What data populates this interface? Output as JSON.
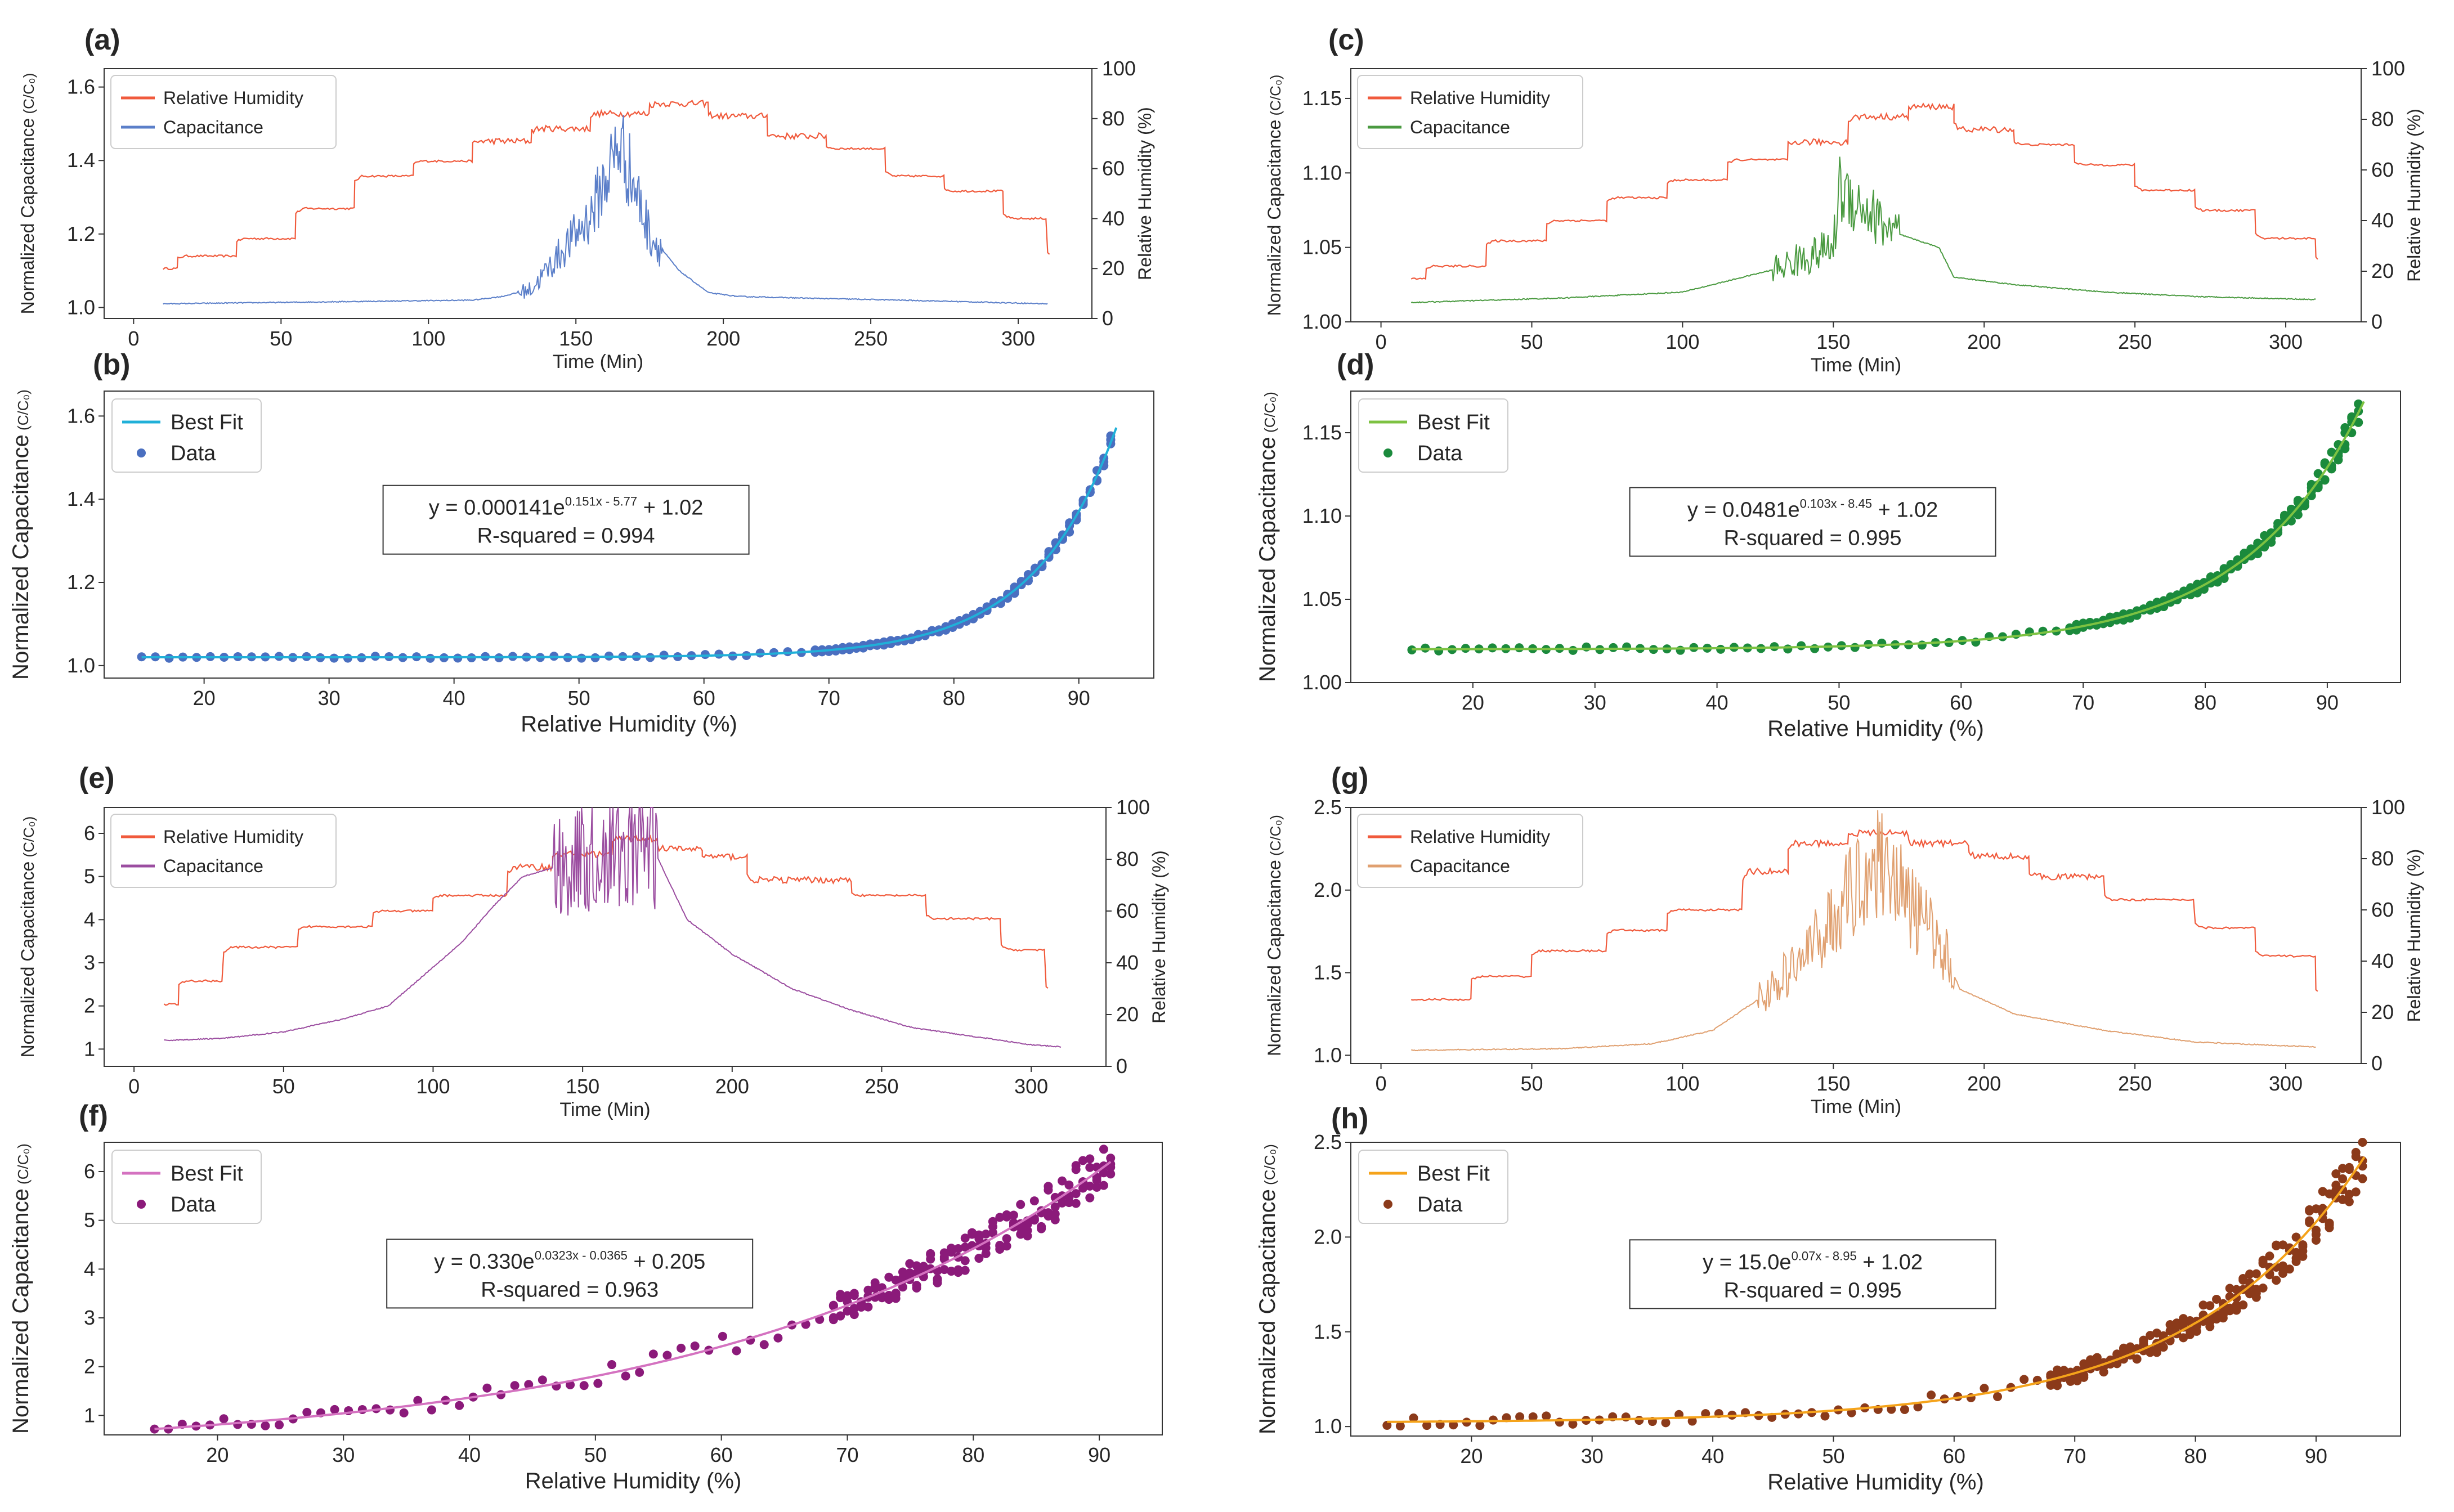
{
  "chart_data": [
    {
      "panel": "(a)",
      "type": "line",
      "xlabel": "Time (Min)",
      "ylabel": "Normalized Capacitance",
      "ylabel_frac": "C/C₀",
      "y2label": "Relative Humidity (%)",
      "xlim": [
        -10,
        325
      ],
      "ylim": [
        0.97,
        1.65
      ],
      "y2lim": [
        0,
        100
      ],
      "xticks": [
        0,
        50,
        100,
        150,
        200,
        250,
        300
      ],
      "yticks": [
        1.0,
        1.2,
        1.4,
        1.6
      ],
      "y2ticks": [
        0,
        20,
        40,
        60,
        80,
        100
      ],
      "rh_color": "#f05a3c",
      "cap_color": "#5b7fc9",
      "legend": [
        "Relative Humidity",
        "Capacitance"
      ],
      "rh_steps": [
        [
          10,
          20
        ],
        [
          15,
          25
        ],
        [
          35,
          32
        ],
        [
          55,
          44
        ],
        [
          75,
          57
        ],
        [
          95,
          63
        ],
        [
          115,
          71
        ],
        [
          135,
          76
        ],
        [
          155,
          82
        ],
        [
          175,
          86
        ],
        [
          195,
          81
        ],
        [
          215,
          73
        ],
        [
          235,
          68
        ],
        [
          255,
          57
        ],
        [
          275,
          51
        ],
        [
          295,
          40
        ],
        [
          310,
          24
        ]
      ],
      "cap_levels": [
        [
          10,
          1.01
        ],
        [
          115,
          1.02
        ],
        [
          125,
          1.03
        ],
        [
          135,
          1.05
        ],
        [
          140,
          1.1
        ],
        [
          155,
          1.25
        ],
        [
          165,
          1.45
        ],
        [
          175,
          1.2
        ],
        [
          185,
          1.1
        ],
        [
          195,
          1.04
        ],
        [
          205,
          1.03
        ],
        [
          230,
          1.025
        ],
        [
          260,
          1.02
        ],
        [
          310,
          1.01
        ]
      ],
      "noise_range": [
        130,
        180
      ]
    },
    {
      "panel": "(b)",
      "type": "scatter",
      "xlabel": "Relative Humidity (%)",
      "ylabel": "Normalized Capacitance",
      "ylabel_frac": "C/C₀",
      "xlim": [
        12,
        96
      ],
      "ylim": [
        0.97,
        1.66
      ],
      "xticks": [
        20,
        30,
        40,
        50,
        60,
        70,
        80,
        90
      ],
      "yticks": [
        1.0,
        1.2,
        1.4,
        1.6
      ],
      "fit_color": "#20b0d8",
      "data_color": "#4a6fc0",
      "legend": [
        "Best Fit",
        "Data"
      ],
      "fit": {
        "a": 0.000141,
        "b": 0.151,
        "c": 5.77,
        "d": 1.02
      },
      "equation": "y = 0.000141e",
      "exponent": "0.151x - 5.77",
      "eq_tail": " + 1.02",
      "rsq": "R-squared = 0.994",
      "x_range": [
        15,
        93
      ],
      "spread": 0.02
    },
    {
      "panel": "(c)",
      "type": "line",
      "xlabel": "Time (Min)",
      "ylabel": "Normalized Capacitance",
      "ylabel_frac": "C/C₀",
      "y2label": "Relative Humidity (%)",
      "xlim": [
        -10,
        325
      ],
      "ylim": [
        1.0,
        1.17
      ],
      "y2lim": [
        0,
        100
      ],
      "xticks": [
        0,
        50,
        100,
        150,
        200,
        250,
        300
      ],
      "yticks": [
        1.0,
        1.05,
        1.1,
        1.15
      ],
      "y2ticks": [
        0,
        20,
        40,
        60,
        80,
        100
      ],
      "rh_color": "#f05a3c",
      "cap_color": "#4a9a40",
      "legend": [
        "Relative Humidity",
        "Capacitance"
      ],
      "rh_steps": [
        [
          10,
          17
        ],
        [
          15,
          22
        ],
        [
          35,
          32
        ],
        [
          55,
          40
        ],
        [
          75,
          49
        ],
        [
          95,
          56
        ],
        [
          115,
          64
        ],
        [
          135,
          71
        ],
        [
          155,
          81
        ],
        [
          175,
          85
        ],
        [
          190,
          76
        ],
        [
          210,
          70
        ],
        [
          230,
          62
        ],
        [
          250,
          52
        ],
        [
          270,
          44
        ],
        [
          290,
          33
        ],
        [
          310,
          24
        ]
      ],
      "cap_levels": [
        [
          10,
          1.013
        ],
        [
          60,
          1.016
        ],
        [
          100,
          1.02
        ],
        [
          110,
          1.025
        ],
        [
          130,
          1.035
        ],
        [
          150,
          1.05
        ],
        [
          152,
          1.09
        ],
        [
          170,
          1.06
        ],
        [
          185,
          1.05
        ],
        [
          190,
          1.03
        ],
        [
          210,
          1.025
        ],
        [
          240,
          1.02
        ],
        [
          270,
          1.017
        ],
        [
          310,
          1.015
        ]
      ],
      "noise_range": [
        130,
        172
      ]
    },
    {
      "panel": "(d)",
      "type": "scatter",
      "xlabel": "Relative Humidity (%)",
      "ylabel": "Normalized Capacitance",
      "ylabel_frac": "C/C₀",
      "xlim": [
        10,
        96
      ],
      "ylim": [
        1.0,
        1.175
      ],
      "xticks": [
        20,
        30,
        40,
        50,
        60,
        70,
        80,
        90
      ],
      "yticks": [
        1.0,
        1.05,
        1.1,
        1.15
      ],
      "fit_color": "#7dc242",
      "data_color": "#1b8a3c",
      "legend": [
        "Best Fit",
        "Data"
      ],
      "fit": {
        "a": 0.0481,
        "b": 0.103,
        "c": 8.45,
        "d": 1.02
      },
      "equation": "y = 0.0481e",
      "exponent": "0.103x - 8.45",
      "eq_tail": " + 1.02",
      "rsq": "R-squared = 0.995",
      "x_range": [
        15,
        93
      ],
      "spread": 0.008
    },
    {
      "panel": "(e)",
      "type": "line",
      "xlabel": "Time (Min)",
      "ylabel": "Normalized Capacitance",
      "ylabel_frac": "C/C₀",
      "y2label": "Relative Humidity (%)",
      "xlim": [
        -10,
        325
      ],
      "ylim": [
        0.6,
        6.6
      ],
      "y2lim": [
        0,
        100
      ],
      "xticks": [
        0,
        50,
        100,
        150,
        200,
        250,
        300
      ],
      "yticks": [
        1,
        2,
        3,
        4,
        5,
        6
      ],
      "y2ticks": [
        0,
        20,
        40,
        60,
        80,
        100
      ],
      "rh_color": "#f05a3c",
      "cap_color": "#9b4da0",
      "legend": [
        "Relative Humidity",
        "Capacitance"
      ],
      "rh_steps": [
        [
          10,
          24
        ],
        [
          15,
          33
        ],
        [
          30,
          46
        ],
        [
          55,
          54
        ],
        [
          80,
          60
        ],
        [
          100,
          66
        ],
        [
          125,
          77
        ],
        [
          140,
          82
        ],
        [
          160,
          88
        ],
        [
          175,
          84
        ],
        [
          190,
          81
        ],
        [
          205,
          72
        ],
        [
          240,
          66
        ],
        [
          265,
          57
        ],
        [
          290,
          45
        ],
        [
          305,
          28
        ]
      ],
      "cap_levels": [
        [
          10,
          1.2
        ],
        [
          30,
          1.25
        ],
        [
          50,
          1.4
        ],
        [
          70,
          1.7
        ],
        [
          85,
          2.0
        ],
        [
          100,
          2.9
        ],
        [
          110,
          3.5
        ],
        [
          120,
          4.3
        ],
        [
          130,
          5.0
        ],
        [
          145,
          5.3
        ],
        [
          165,
          5.6
        ],
        [
          172,
          5.9
        ],
        [
          178,
          5.0
        ],
        [
          185,
          4.0
        ],
        [
          200,
          3.2
        ],
        [
          220,
          2.4
        ],
        [
          240,
          1.9
        ],
        [
          260,
          1.5
        ],
        [
          280,
          1.3
        ],
        [
          300,
          1.1
        ],
        [
          310,
          1.05
        ]
      ],
      "noise_range": [
        140,
        175
      ]
    },
    {
      "panel": "(f)",
      "type": "scatter",
      "xlabel": "Relative Humidity (%)",
      "ylabel": "Normalized Capacitance",
      "ylabel_frac": "C/C₀",
      "xlim": [
        11,
        95
      ],
      "ylim": [
        0.6,
        6.6
      ],
      "xticks": [
        20,
        30,
        40,
        50,
        60,
        70,
        80,
        90
      ],
      "yticks": [
        1,
        2,
        3,
        4,
        5,
        6
      ],
      "fit_color": "#d472c0",
      "data_color": "#8b1a7a",
      "legend": [
        "Best Fit",
        "Data"
      ],
      "fit": {
        "a": 0.33,
        "b": 0.0323,
        "c": 0.0365,
        "d": 0.205
      },
      "equation": "y = 0.330e",
      "exponent": "0.0323x - 0.0365",
      "eq_tail": " + 0.205",
      "rsq": "R-squared = 0.963",
      "x_range": [
        15,
        91
      ],
      "spread": 0.5
    },
    {
      "panel": "(g)",
      "type": "line",
      "xlabel": "Time (Min)",
      "ylabel": "Normalized Capacitance",
      "ylabel_frac": "C/C₀",
      "y2label": "Relative Humidity (%)",
      "xlim": [
        -10,
        325
      ],
      "ylim": [
        0.95,
        2.5
      ],
      "y2lim": [
        0,
        100
      ],
      "xticks": [
        0,
        50,
        100,
        150,
        200,
        250,
        300
      ],
      "yticks": [
        1.0,
        1.5,
        2.0,
        2.5
      ],
      "y2ticks": [
        0,
        20,
        40,
        60,
        80,
        100
      ],
      "rh_color": "#f05a3c",
      "cap_color": "#e0a070",
      "legend": [
        "Relative Humidity",
        "Capacitance"
      ],
      "rh_steps": [
        [
          10,
          25
        ],
        [
          30,
          34
        ],
        [
          50,
          44
        ],
        [
          75,
          52
        ],
        [
          95,
          60
        ],
        [
          120,
          75
        ],
        [
          135,
          86
        ],
        [
          155,
          90
        ],
        [
          175,
          86
        ],
        [
          195,
          81
        ],
        [
          215,
          73
        ],
        [
          240,
          64
        ],
        [
          270,
          53
        ],
        [
          290,
          42
        ],
        [
          310,
          26
        ]
      ],
      "cap_levels": [
        [
          10,
          1.03
        ],
        [
          60,
          1.04
        ],
        [
          90,
          1.07
        ],
        [
          110,
          1.15
        ],
        [
          130,
          1.4
        ],
        [
          145,
          1.7
        ],
        [
          160,
          2.1
        ],
        [
          168,
          2.2
        ],
        [
          175,
          1.9
        ],
        [
          185,
          1.7
        ],
        [
          192,
          1.4
        ],
        [
          210,
          1.25
        ],
        [
          240,
          1.15
        ],
        [
          270,
          1.08
        ],
        [
          310,
          1.05
        ]
      ],
      "noise_range": [
        125,
        190
      ]
    },
    {
      "panel": "(h)",
      "type": "scatter",
      "xlabel": "Relative Humidity (%)",
      "ylabel": "Normalized Capacitance",
      "ylabel_frac": "C/C₀",
      "xlim": [
        10,
        97
      ],
      "ylim": [
        0.95,
        2.5
      ],
      "xticks": [
        20,
        30,
        40,
        50,
        60,
        70,
        80,
        90
      ],
      "yticks": [
        1.0,
        1.5,
        2.0,
        2.5
      ],
      "fit_color": "#f5a31a",
      "data_color": "#8b3a1a",
      "legend": [
        "Best Fit",
        "Data"
      ],
      "fit": {
        "a": 15.0,
        "b": 0.07,
        "c": 8.95,
        "d": 1.02
      },
      "equation": "y = 15.0e",
      "exponent": "0.07x - 8.95",
      "eq_tail": " + 1.02",
      "rsq": "R-squared = 0.995",
      "x_range": [
        13,
        94
      ],
      "spread": 0.15
    }
  ]
}
